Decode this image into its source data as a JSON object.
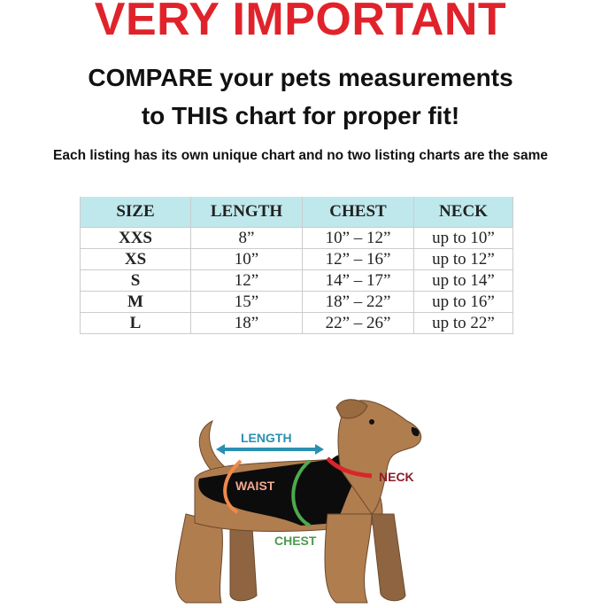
{
  "headline": "VERY IMPORTANT",
  "subheadline_line1": "COMPARE your pets measurements",
  "subheadline_line2": "to THIS chart for proper fit!",
  "note": "Each listing has its own unique chart and no two listing charts are the same",
  "table": {
    "headers": [
      "SIZE",
      "LENGTH",
      "CHEST",
      "NECK"
    ],
    "rows": [
      [
        "XXS",
        "8”",
        "10” – 12”",
        "up to 10”"
      ],
      [
        "XS",
        "10”",
        "12” – 16”",
        "up to 12”"
      ],
      [
        "S",
        "12”",
        "14” – 17”",
        "up to 14”"
      ],
      [
        "M",
        "15”",
        "18” – 22”",
        "up to 16”"
      ],
      [
        "L",
        "18”",
        "22” – 26”",
        "up to 22”"
      ]
    ]
  },
  "diagram": {
    "length_label": "LENGTH",
    "waist_label": "WAIST",
    "chest_label": "CHEST",
    "neck_label": "NECK",
    "colors": {
      "length": "#2a8fb0",
      "waist": "#f08a4b",
      "chest": "#4caa4c",
      "neck": "#d9262a",
      "fur": "#b07d4f",
      "coat": "#0c0c0c"
    }
  }
}
